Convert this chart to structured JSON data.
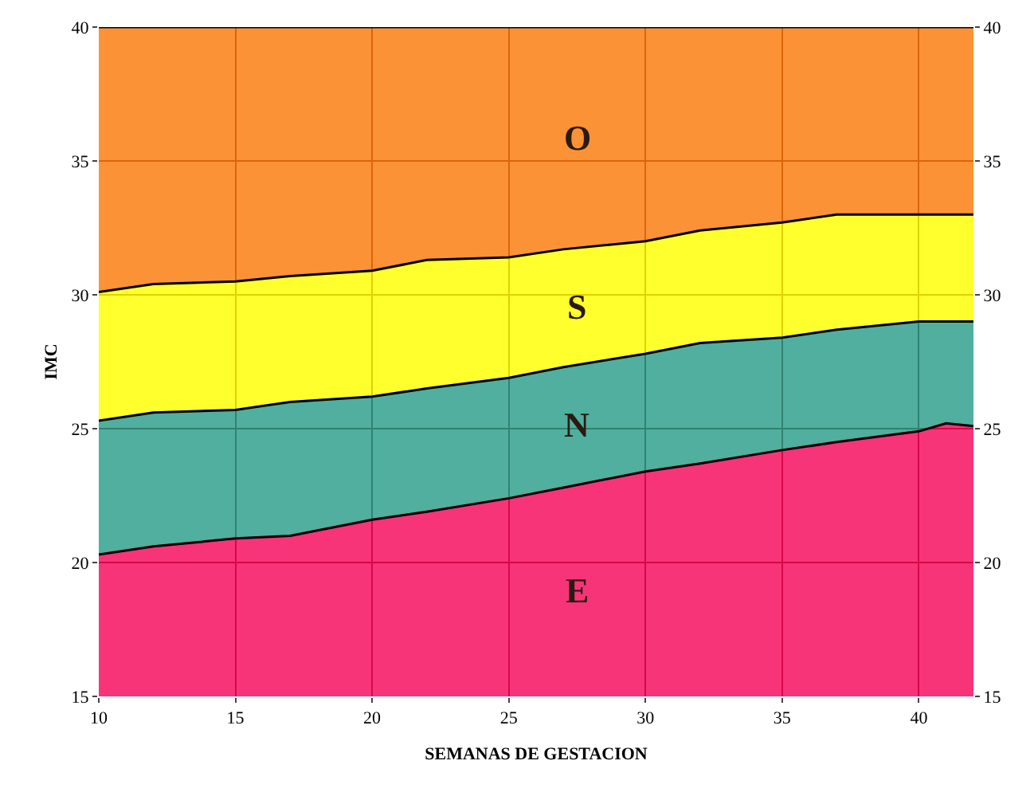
{
  "chart_data": {
    "type": "area",
    "xlabel": "SEMANAS DE GESTACION",
    "ylabel": "IMC",
    "x": [
      10,
      12,
      15,
      17,
      20,
      22,
      25,
      27,
      30,
      32,
      35,
      37,
      40,
      41,
      42
    ],
    "series": [
      {
        "name": "E",
        "color": "#f5075a",
        "values": [
          20.3,
          20.6,
          20.9,
          21.0,
          21.6,
          21.9,
          22.4,
          22.8,
          23.4,
          23.7,
          24.2,
          24.5,
          24.9,
          25.2,
          25.1
        ]
      },
      {
        "name": "N",
        "color": "#2a9e8a",
        "values": [
          25.3,
          25.6,
          25.7,
          26.0,
          26.2,
          26.5,
          26.9,
          27.3,
          27.8,
          28.2,
          28.4,
          28.7,
          29.0,
          29.0,
          29.0
        ]
      },
      {
        "name": "S",
        "color": "#ffff00",
        "values": [
          30.1,
          30.4,
          30.5,
          30.7,
          30.9,
          31.3,
          31.4,
          31.7,
          32.0,
          32.4,
          32.7,
          33.0,
          33.0,
          33.0,
          33.0
        ]
      },
      {
        "name": "O",
        "color": "#fb7a0a",
        "values": [
          40,
          40,
          40,
          40,
          40,
          40,
          40,
          40,
          40,
          40,
          40,
          40,
          40,
          40,
          40
        ]
      }
    ],
    "xlim": [
      10,
      42
    ],
    "xticks": [
      10,
      15,
      20,
      25,
      30,
      35,
      40
    ],
    "ylim": [
      15,
      40
    ],
    "yticks": [
      15,
      20,
      25,
      30,
      35,
      40
    ],
    "y2lim": [
      15,
      40
    ],
    "y2ticks": [
      15,
      20,
      25,
      30,
      35,
      40
    ],
    "grid": true,
    "legend": false
  }
}
